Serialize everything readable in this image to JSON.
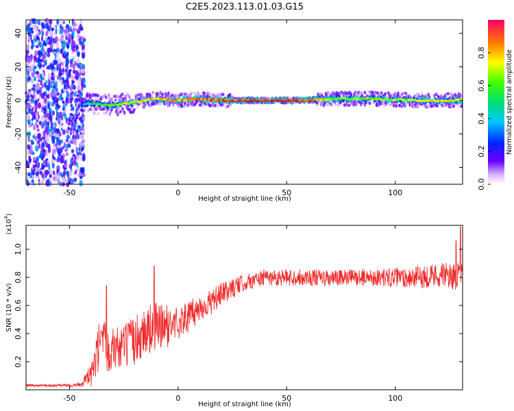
{
  "title": "C2E5.2023.113.01.03.G15",
  "chart_data": [
    {
      "type": "heatmap",
      "name": "spectrogram",
      "xlabel": "Height of straight line (km)",
      "ylabel": "Frequency (Hz)",
      "xlim": [
        -70,
        131
      ],
      "ylim": [
        -50,
        48
      ],
      "xticks": [
        -50,
        0,
        50,
        100
      ],
      "yticks": [
        -40,
        -20,
        0,
        20,
        40
      ],
      "xtick_labels": [
        "-50",
        "0",
        "50",
        "100"
      ],
      "ytick_labels": [
        "-40",
        "-20",
        "0",
        "20",
        "40"
      ],
      "line_frequency": 0,
      "noise_region_end_km": -44,
      "gap_region_km": [
        25,
        64
      ],
      "colorbar": {
        "label": "Normalized spectral amplitude",
        "range": [
          0,
          1
        ],
        "ticks": [
          0.0,
          0.2,
          0.4,
          0.6,
          0.8
        ],
        "tick_labels": [
          "0.0",
          "0.2",
          "0.4",
          "0.6",
          "0.8"
        ]
      },
      "signal_track": [
        {
          "x": -44,
          "y": -2,
          "amp": 0.3
        },
        {
          "x": -40,
          "y": -2,
          "amp": 0.55
        },
        {
          "x": -30,
          "y": -3,
          "amp": 0.7
        },
        {
          "x": -20,
          "y": -1,
          "amp": 0.8
        },
        {
          "x": -10,
          "y": 1,
          "amp": 0.85
        },
        {
          "x": 0,
          "y": 0,
          "amp": 0.9
        },
        {
          "x": 10,
          "y": 1,
          "amp": 0.95
        },
        {
          "x": 20,
          "y": 0,
          "amp": 1.0
        },
        {
          "x": 40,
          "y": 0,
          "amp": 1.0
        },
        {
          "x": 60,
          "y": 0,
          "amp": 1.0
        },
        {
          "x": 70,
          "y": 1,
          "amp": 0.7
        },
        {
          "x": 90,
          "y": 1,
          "amp": 0.7
        },
        {
          "x": 110,
          "y": 0,
          "amp": 0.75
        },
        {
          "x": 131,
          "y": 0,
          "amp": 0.8
        }
      ]
    },
    {
      "type": "line",
      "name": "snr",
      "xlabel": "Height of straight line (km)",
      "ylabel": "SNR (10 * v/v)",
      "yscale_label": "(x10",
      "yscale_exp": "4",
      "yscale_close": ")",
      "xlim": [
        -70,
        131
      ],
      "ylim": [
        0,
        1.17
      ],
      "xticks": [
        -50,
        0,
        50,
        100
      ],
      "yticks": [
        0.2,
        0.4,
        0.6,
        0.8,
        1.0
      ],
      "xtick_labels": [
        "-50",
        "0",
        "50",
        "100"
      ],
      "ytick_labels": [
        "0.2",
        "0.4",
        "0.6",
        "0.8",
        "1.0"
      ],
      "color": "#ee2b2b",
      "trend": {
        "x": [
          -70,
          -50,
          -45,
          -40,
          -36,
          -30,
          -25,
          -20,
          -15,
          -10,
          -5,
          0,
          5,
          10,
          15,
          20,
          25,
          30,
          35,
          40,
          50,
          60,
          70,
          80,
          90,
          100,
          110,
          120,
          131
        ],
        "y": [
          0.03,
          0.03,
          0.04,
          0.1,
          0.3,
          0.3,
          0.3,
          0.35,
          0.42,
          0.45,
          0.45,
          0.48,
          0.52,
          0.58,
          0.62,
          0.68,
          0.72,
          0.76,
          0.78,
          0.8,
          0.8,
          0.8,
          0.79,
          0.8,
          0.8,
          0.8,
          0.8,
          0.82,
          0.8
        ]
      },
      "noise_amplitude": {
        "x": [
          -70,
          -50,
          -45,
          -40,
          -36,
          -30,
          -20,
          -10,
          0,
          10,
          20,
          30,
          50,
          90,
          110,
          131
        ],
        "y": [
          0.01,
          0.01,
          0.02,
          0.08,
          0.22,
          0.15,
          0.18,
          0.18,
          0.12,
          0.1,
          0.08,
          0.06,
          0.06,
          0.06,
          0.08,
          0.1
        ]
      },
      "peaks": [
        {
          "x": -33,
          "y": 0.74
        },
        {
          "x": -11,
          "y": 0.88
        },
        {
          "x": 128,
          "y": 1.06
        },
        {
          "x": 130,
          "y": 1.16
        }
      ]
    }
  ]
}
